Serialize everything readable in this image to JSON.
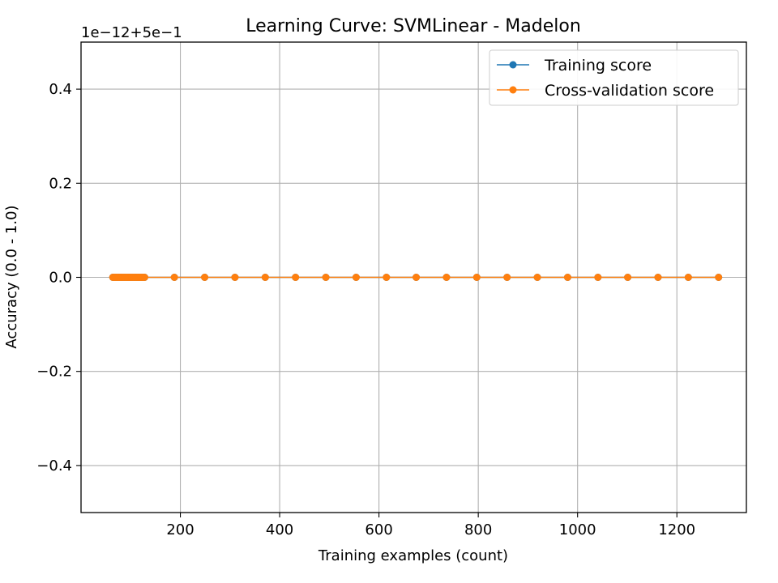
{
  "chart_data": {
    "type": "line",
    "title": "Learning Curve: SVMLinear - Madelon",
    "xlabel": "Training examples (count)",
    "ylabel": "Accuracy (0.0 - 1.0)",
    "offset_text": "1e−12+5e−1",
    "xlim": [
      0,
      1340
    ],
    "ylim": [
      -0.5,
      0.5
    ],
    "xticks": [
      200,
      400,
      600,
      800,
      1000,
      1200
    ],
    "xtick_labels": [
      "200",
      "400",
      "600",
      "800",
      "1000",
      "1200"
    ],
    "yticks": [
      -0.4,
      -0.2,
      0.0,
      0.2,
      0.4
    ],
    "ytick_labels": [
      "−0.4",
      "−0.2",
      "0.0",
      "0.2",
      "0.4"
    ],
    "grid": true,
    "legend_position": "top-right",
    "x": [
      64,
      67,
      69,
      72,
      74,
      77,
      79,
      82,
      84,
      87,
      90,
      92,
      95,
      97,
      100,
      102,
      105,
      107,
      110,
      113,
      115,
      118,
      120,
      123,
      125,
      128,
      188,
      249,
      310,
      371,
      432,
      493,
      554,
      615,
      675,
      736,
      797,
      858,
      919,
      980,
      1041,
      1101,
      1162,
      1223,
      1284
    ],
    "series": [
      {
        "name": "Training score",
        "color": "#1f77b4",
        "values": [
          0,
          0,
          0,
          0,
          0,
          0,
          0,
          0,
          0,
          0,
          0,
          0,
          0,
          0,
          0,
          0,
          0,
          0,
          0,
          0,
          0,
          0,
          0,
          0,
          0,
          0,
          0,
          0,
          0,
          0,
          0,
          0,
          0,
          0,
          0,
          0,
          0,
          0,
          0,
          0,
          0,
          0,
          0,
          0,
          0
        ]
      },
      {
        "name": "Cross-validation score",
        "color": "#ff7f0e",
        "values": [
          0,
          0,
          0,
          0,
          0,
          0,
          0,
          0,
          0,
          0,
          0,
          0,
          0,
          0,
          0,
          0,
          0,
          0,
          0,
          0,
          0,
          0,
          0,
          0,
          0,
          0,
          0,
          0,
          0,
          0,
          0,
          0,
          0,
          0,
          0,
          0,
          0,
          0,
          0,
          0,
          0,
          0,
          0,
          0,
          0
        ]
      }
    ]
  }
}
